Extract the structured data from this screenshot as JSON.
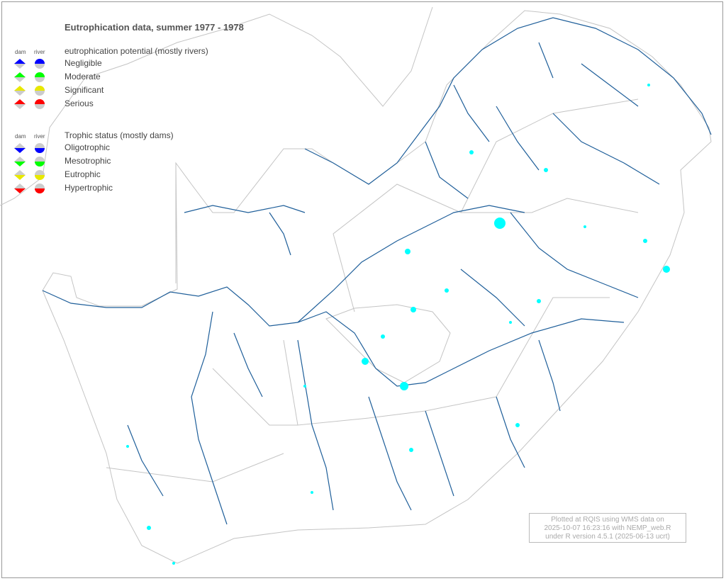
{
  "title": "Eutrophication data, summer 1977 - 1978",
  "legend": {
    "col_dam": "dam",
    "col_river": "river",
    "potential": {
      "heading": "eutrophication potential (mostly rivers)",
      "items": [
        {
          "label": "Negligible",
          "color": "#0000ff"
        },
        {
          "label": "Moderate",
          "color": "#00ff00"
        },
        {
          "label": "Significant",
          "color": "#e8e800"
        },
        {
          "label": "Serious",
          "color": "#ff0000"
        }
      ]
    },
    "trophic": {
      "heading": "Trophic status (mostly dams)",
      "items": [
        {
          "label": "Oligotrophic",
          "color": "#0000ff"
        },
        {
          "label": "Mesotrophic",
          "color": "#00ff00"
        },
        {
          "label": "Eutrophic",
          "color": "#e8e800"
        },
        {
          "label": "Hypertrophic",
          "color": "#ff0000"
        }
      ]
    }
  },
  "credit": {
    "line1": "Plotted at RQIS using WMS data on",
    "line2": "2025-10-07 16:23:16 with NEMP_web.R",
    "line3": "under R version 4.5.1 (2025-06-13 ucrt)"
  },
  "colors": {
    "river": "#1f5f9a",
    "dam": "#00ffff",
    "border": "#bbbbbb",
    "symbol_base": "#cccccc"
  }
}
